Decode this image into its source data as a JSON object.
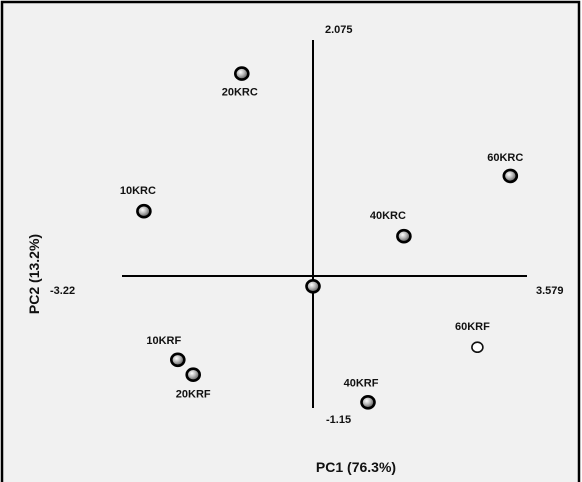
{
  "chart_data": {
    "type": "scatter",
    "title": "",
    "xlabel": "PC1 (76.3%)",
    "ylabel": "PC2 (13.2%)",
    "xlim": [
      -3.22,
      3.579
    ],
    "ylim": [
      -1.15,
      2.075
    ],
    "x_ticks": [
      "-3.22",
      "3.579"
    ],
    "y_ticks": [
      "2.075",
      "-1.15"
    ],
    "grid": false,
    "legend": "none",
    "points": [
      {
        "label": "20KRC",
        "x": -1.2,
        "y": 1.78,
        "style": "filled"
      },
      {
        "label": "10KRC",
        "x": -2.85,
        "y": 0.57,
        "style": "filled"
      },
      {
        "label": "40KRC",
        "x": 1.52,
        "y": 0.35,
        "style": "filled"
      },
      {
        "label": "60KRC",
        "x": 3.3,
        "y": 0.88,
        "style": "filled"
      },
      {
        "label": "",
        "x": 0.0,
        "y": -0.09,
        "style": "filled"
      },
      {
        "label": "10KRF",
        "x": -2.28,
        "y": -0.73,
        "style": "filled"
      },
      {
        "label": "20KRF",
        "x": -2.02,
        "y": -0.86,
        "style": "filled"
      },
      {
        "label": "40KRF",
        "x": 0.92,
        "y": -1.1,
        "style": "filled"
      },
      {
        "label": "60KRF",
        "x": 2.75,
        "y": -0.62,
        "style": "hollow"
      }
    ]
  }
}
